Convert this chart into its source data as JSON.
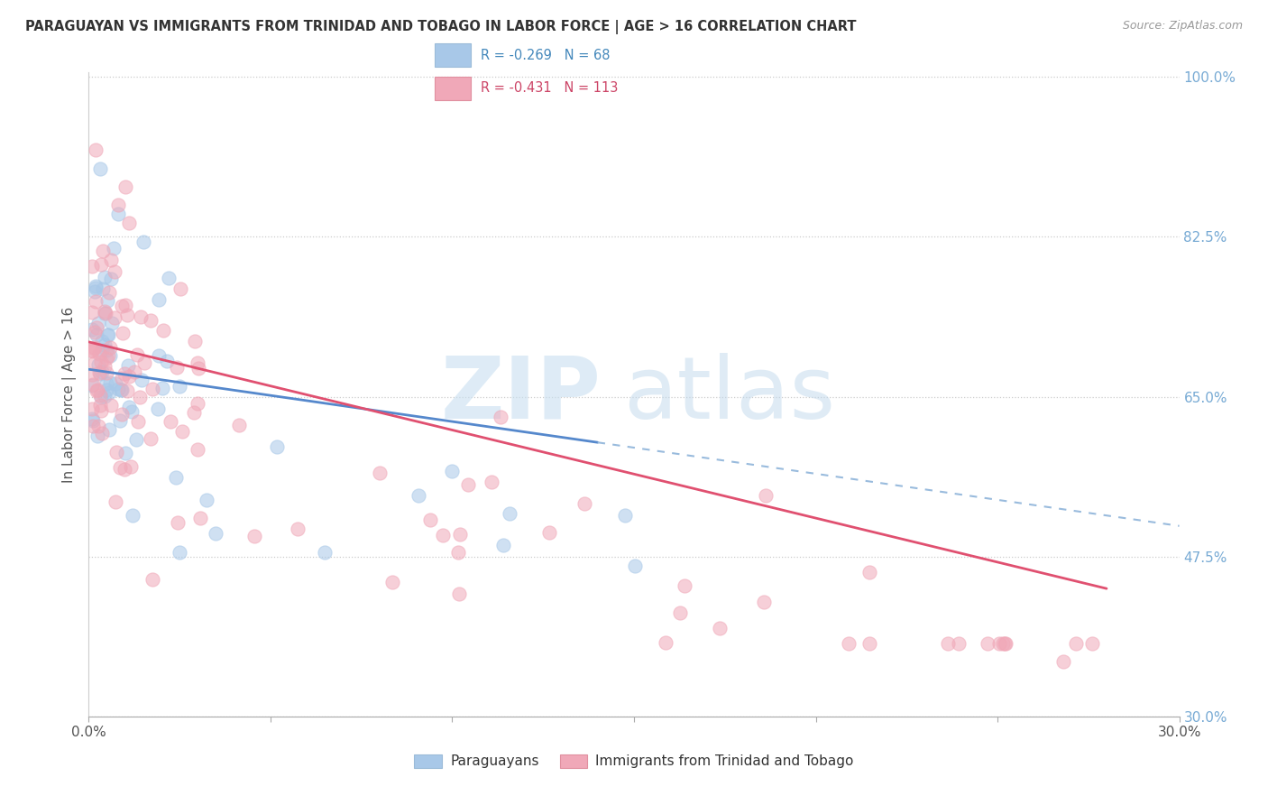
{
  "title": "PARAGUAYAN VS IMMIGRANTS FROM TRINIDAD AND TOBAGO IN LABOR FORCE | AGE > 16 CORRELATION CHART",
  "source": "Source: ZipAtlas.com",
  "ylabel": "In Labor Force | Age > 16",
  "legend1_label": "Paraguayans",
  "legend2_label": "Immigrants from Trinidad and Tobago",
  "R1": -0.269,
  "N1": 68,
  "R2": -0.431,
  "N2": 113,
  "color1": "#a8c8e8",
  "color2": "#f0a8b8",
  "line_color1": "#5588cc",
  "line_color2": "#e05070",
  "dash_color1": "#99bbdd",
  "xmin": 0.0,
  "xmax": 0.3,
  "ymin": 0.3,
  "ymax": 1.005,
  "right_yticks": [
    1.0,
    0.825,
    0.65,
    0.475,
    0.3
  ],
  "right_yticklabels": [
    "100.0%",
    "82.5%",
    "65.0%",
    "47.5%",
    "30.0%"
  ],
  "grid_color": "#e0e0e0",
  "grid_linestyle": ":",
  "watermark_zip_color": "#c8dff0",
  "watermark_atlas_color": "#c0d8ec",
  "title_fontsize": 11,
  "source_fontsize": 9,
  "legend_text_color1": "#4488bb",
  "legend_text_color2": "#cc4466"
}
